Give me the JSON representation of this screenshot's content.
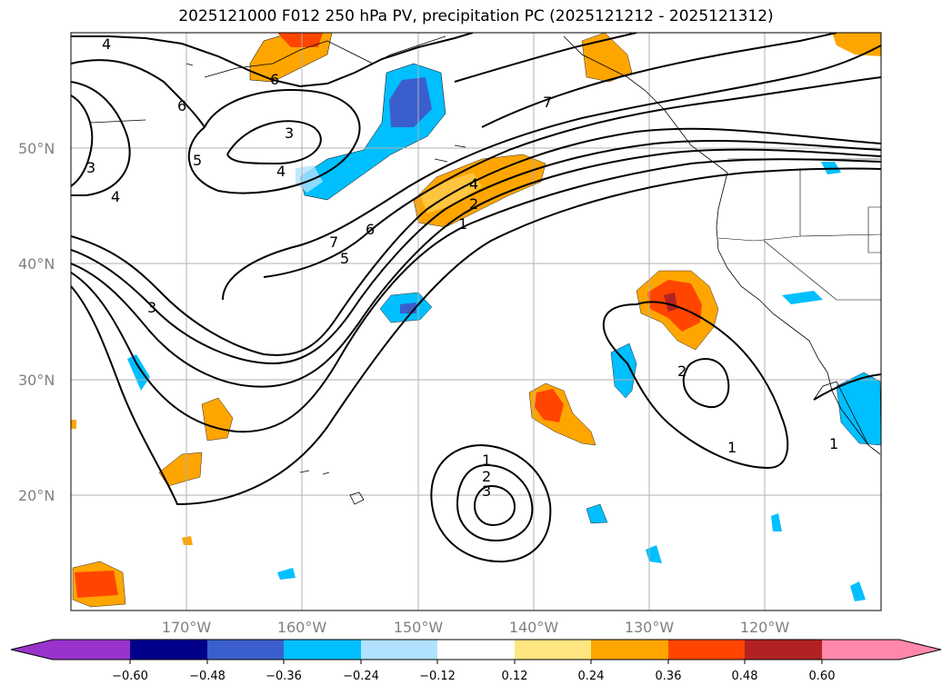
{
  "title": "2025121000 F012 250 hPa PV, precipitation PC (2025121212 - 2025121312)",
  "map": {
    "lat_labels": [
      "50°N",
      "40°N",
      "30°N",
      "20°N"
    ],
    "lon_labels": [
      "170°W",
      "160°W",
      "150°W",
      "140°W",
      "130°W",
      "120°W"
    ],
    "extent": {
      "lon_min": -180,
      "lon_max": -110,
      "lat_min": 10,
      "lat_max": 60
    },
    "contour_labels": [
      "4",
      "6",
      "6",
      "3",
      "5",
      "4",
      "3",
      "4",
      "7",
      "5",
      "6",
      "3",
      "4",
      "2",
      "1",
      "7",
      "2",
      "1",
      "1",
      "2",
      "3",
      "1"
    ]
  },
  "colorbar": {
    "ticks": [
      "−0.60",
      "−0.48",
      "−0.36",
      "−0.24",
      "−0.12",
      "0.12",
      "0.24",
      "0.36",
      "0.48",
      "0.60"
    ],
    "colors": [
      "#9933cc",
      "#00008b",
      "#3a5fcd",
      "#00bfff",
      "#b0e2ff",
      "#ffffff",
      "#ffe680",
      "#ffa500",
      "#ff4500",
      "#b22222",
      "#ff88aa"
    ]
  }
}
